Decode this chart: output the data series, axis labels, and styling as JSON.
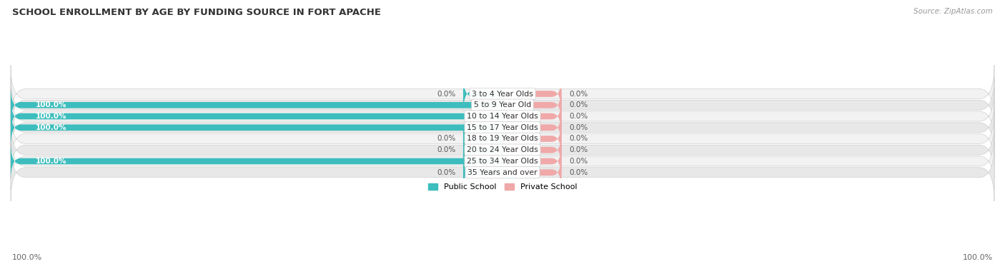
{
  "title": "SCHOOL ENROLLMENT BY AGE BY FUNDING SOURCE IN FORT APACHE",
  "source": "Source: ZipAtlas.com",
  "categories": [
    "3 to 4 Year Olds",
    "5 to 9 Year Old",
    "10 to 14 Year Olds",
    "15 to 17 Year Olds",
    "18 to 19 Year Olds",
    "20 to 24 Year Olds",
    "25 to 34 Year Olds",
    "35 Years and over"
  ],
  "public_values": [
    0.0,
    100.0,
    100.0,
    100.0,
    0.0,
    0.0,
    100.0,
    0.0
  ],
  "private_values": [
    0.0,
    0.0,
    0.0,
    0.0,
    0.0,
    0.0,
    0.0,
    0.0
  ],
  "public_color": "#3dbdbd",
  "private_color": "#f0a8a8",
  "public_label": "Public School",
  "private_label": "Private School",
  "row_bg_light": "#f2f2f2",
  "row_bg_dark": "#e8e8e8",
  "row_border": "#d0d0d0",
  "axis_label_left": "100.0%",
  "axis_label_right": "100.0%",
  "bar_height": 0.55,
  "stub_size": 8.0,
  "private_stub_size": 12.0,
  "total_width": 100
}
